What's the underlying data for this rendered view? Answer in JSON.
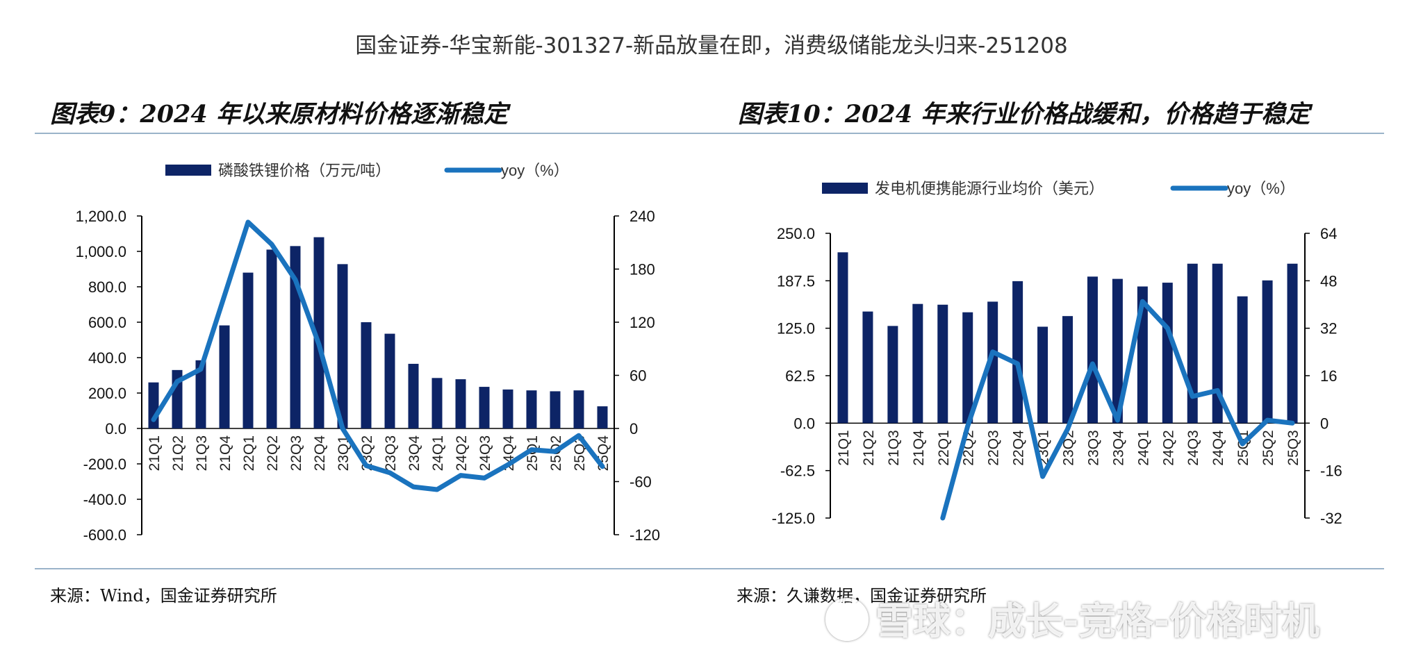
{
  "header": "国金证券-华宝新能-301327-新品放量在即，消费级储能龙头归来-251208",
  "watermark": "雪球：成长-竞格-价格时机",
  "colors": {
    "bar": "#0d2466",
    "line": "#1a73be",
    "rule": "#9ab3c9"
  },
  "chart_data": [
    {
      "type": "bar+line",
      "title": "图表9：2024 年以来原材料价格逐渐稳定",
      "source": "来源：Wind，国金证券研究所",
      "categories": [
        "21Q1",
        "21Q2",
        "21Q3",
        "21Q4",
        "22Q1",
        "22Q2",
        "22Q3",
        "22Q4",
        "23Q1",
        "23Q2",
        "23Q3",
        "23Q4",
        "24Q1",
        "24Q2",
        "24Q3",
        "24Q4",
        "25Q1",
        "25Q2",
        "25Q3",
        "25Q4"
      ],
      "series": [
        {
          "name": "磷酸铁锂价格（万元/吨）",
          "type": "bar",
          "axis": "left",
          "values": [
            260,
            330,
            385,
            582,
            880,
            1010,
            1030,
            1080,
            928,
            600,
            535,
            365,
            285,
            278,
            235,
            220,
            215,
            210,
            215,
            125
          ]
        },
        {
          "name": "yoy（%）",
          "type": "line",
          "axis": "right",
          "values": [
            10,
            53,
            67,
            150,
            233,
            208,
            168,
            95,
            0,
            -42,
            -50,
            -66,
            -69,
            -53,
            -56,
            -41,
            -24,
            -26,
            -8,
            -43
          ]
        }
      ],
      "left_axis": {
        "range": [
          -600,
          1200
        ],
        "ticks": [
          "1,200.0",
          "1,000.0",
          "800.0",
          "600.0",
          "400.0",
          "200.0",
          "0.0",
          "-200.0",
          "-400.0",
          "-600.0"
        ]
      },
      "right_axis": {
        "range": [
          -120,
          240
        ],
        "ticks": [
          "240",
          "180",
          "120",
          "60",
          "0",
          "-60",
          "-120"
        ]
      }
    },
    {
      "type": "bar+line",
      "title": "图表10：2024 年来行业价格战缓和，价格趋于稳定",
      "source": "来源：久谦数据，国金证券研究所",
      "categories": [
        "21Q1",
        "21Q2",
        "21Q3",
        "21Q4",
        "22Q1",
        "22Q2",
        "22Q3",
        "22Q4",
        "23Q1",
        "23Q2",
        "23Q3",
        "23Q4",
        "24Q1",
        "24Q2",
        "24Q3",
        "24Q4",
        "25Q1",
        "25Q2",
        "25Q3"
      ],
      "series": [
        {
          "name": "发电机便携能源行业均价（美元）",
          "type": "bar",
          "axis": "left",
          "values": [
            225,
            147,
            128,
            157,
            156,
            146,
            160,
            187,
            127,
            141,
            193,
            190,
            180,
            185,
            210,
            210,
            167,
            188,
            210
          ]
        },
        {
          "name": "yoy（%）",
          "type": "line",
          "axis": "right",
          "values": [
            null,
            null,
            null,
            null,
            -32,
            -1,
            24,
            20,
            -18,
            -2,
            20,
            1,
            41,
            32,
            9,
            11,
            -7,
            1,
            0
          ]
        }
      ],
      "left_axis": {
        "range": [
          -125,
          250
        ],
        "ticks": [
          "250.0",
          "187.5",
          "125.0",
          "62.5",
          "0.0",
          "-62.5",
          "-125.0"
        ]
      },
      "right_axis": {
        "range": [
          -32,
          64
        ],
        "ticks": [
          "64",
          "48",
          "32",
          "16",
          "0",
          "-16",
          "-32"
        ]
      }
    }
  ]
}
